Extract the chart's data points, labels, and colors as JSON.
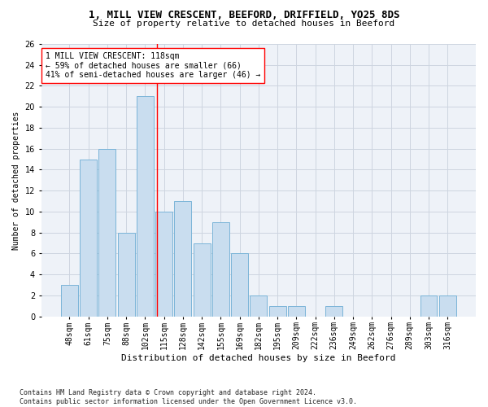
{
  "title1": "1, MILL VIEW CRESCENT, BEEFORD, DRIFFIELD, YO25 8DS",
  "title2": "Size of property relative to detached houses in Beeford",
  "xlabel": "Distribution of detached houses by size in Beeford",
  "ylabel": "Number of detached properties",
  "categories": [
    "48sqm",
    "61sqm",
    "75sqm",
    "88sqm",
    "102sqm",
    "115sqm",
    "128sqm",
    "142sqm",
    "155sqm",
    "169sqm",
    "182sqm",
    "195sqm",
    "209sqm",
    "222sqm",
    "236sqm",
    "249sqm",
    "262sqm",
    "276sqm",
    "289sqm",
    "303sqm",
    "316sqm"
  ],
  "values": [
    3,
    15,
    16,
    8,
    21,
    10,
    11,
    7,
    9,
    6,
    2,
    1,
    1,
    0,
    1,
    0,
    0,
    0,
    0,
    2,
    2
  ],
  "bar_color": "#c9ddef",
  "bar_edge_color": "#7ab4d8",
  "vline_color": "red",
  "vline_pos": 4.62,
  "annotation_text": "1 MILL VIEW CRESCENT: 118sqm\n← 59% of detached houses are smaller (66)\n41% of semi-detached houses are larger (46) →",
  "annotation_box_color": "white",
  "annotation_box_edge": "red",
  "ylim": [
    0,
    26
  ],
  "yticks": [
    0,
    2,
    4,
    6,
    8,
    10,
    12,
    14,
    16,
    18,
    20,
    22,
    24,
    26
  ],
  "footer": "Contains HM Land Registry data © Crown copyright and database right 2024.\nContains public sector information licensed under the Open Government Licence v3.0.",
  "bg_color": "#eef2f8",
  "grid_color": "#cdd5e0",
  "title1_fontsize": 9,
  "title2_fontsize": 8,
  "xlabel_fontsize": 8,
  "ylabel_fontsize": 7,
  "tick_fontsize": 7,
  "annot_fontsize": 7,
  "footer_fontsize": 6
}
